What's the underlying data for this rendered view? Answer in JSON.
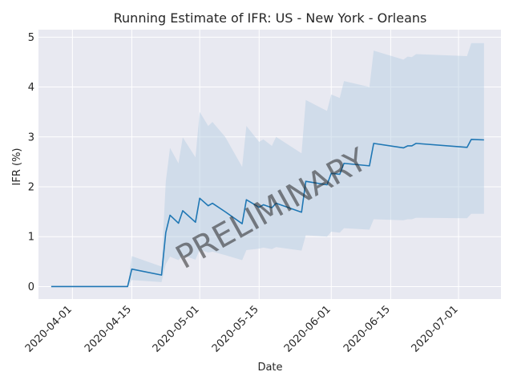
{
  "chart_data": {
    "type": "area",
    "title": "Running Estimate of IFR: US - New York - Orleans",
    "xlabel": "Date",
    "ylabel": "IFR (%)",
    "watermark": "PRELIMINARY",
    "x_ticks": [
      "2020-04-01",
      "2020-04-15",
      "2020-05-01",
      "2020-05-15",
      "2020-06-01",
      "2020-06-15",
      "2020-07-01"
    ],
    "y_ticks": [
      "0",
      "1",
      "2",
      "3",
      "4",
      "5"
    ],
    "xlim": [
      "2020-03-24",
      "2020-07-11"
    ],
    "ylim": [
      -0.25,
      5.15
    ],
    "grid": true,
    "colors": {
      "background": "#e8e9f1",
      "grid": "#ffffff",
      "line": "#1f77b4",
      "band": "#b3cde3",
      "watermark": "#9a9aa2"
    },
    "series": [
      {
        "points": [
          [
            "2020-03-27",
            0
          ],
          [
            "2020-04-14",
            0
          ],
          [
            "2020-04-15",
            0.35
          ],
          [
            "2020-04-22",
            0.23
          ],
          [
            "2020-04-23",
            1.08
          ],
          [
            "2020-04-24",
            1.43
          ],
          [
            "2020-04-26",
            1.27
          ],
          [
            "2020-04-27",
            1.52
          ],
          [
            "2020-04-30",
            1.29
          ],
          [
            "2020-05-01",
            1.77
          ],
          [
            "2020-05-03",
            1.62
          ],
          [
            "2020-05-04",
            1.67
          ],
          [
            "2020-05-07",
            1.5
          ],
          [
            "2020-05-11",
            1.26
          ],
          [
            "2020-05-12",
            1.74
          ],
          [
            "2020-05-15",
            1.59
          ],
          [
            "2020-05-16",
            1.64
          ],
          [
            "2020-05-18",
            1.58
          ],
          [
            "2020-05-19",
            1.67
          ],
          [
            "2020-05-25",
            1.49
          ],
          [
            "2020-05-26",
            2.11
          ],
          [
            "2020-05-31",
            2.04
          ],
          [
            "2020-06-01",
            2.27
          ],
          [
            "2020-06-03",
            2.25
          ],
          [
            "2020-06-04",
            2.47
          ],
          [
            "2020-06-10",
            2.42
          ],
          [
            "2020-06-11",
            2.87
          ],
          [
            "2020-06-18",
            2.78
          ],
          [
            "2020-06-19",
            2.82
          ],
          [
            "2020-06-20",
            2.82
          ],
          [
            "2020-06-21",
            2.87
          ],
          [
            "2020-07-03",
            2.79
          ],
          [
            "2020-07-04",
            2.95
          ],
          [
            "2020-07-07",
            2.94
          ]
        ],
        "ci_band": [
          [
            "2020-03-27",
            0,
            0
          ],
          [
            "2020-04-14",
            0,
            0
          ],
          [
            "2020-04-15",
            0.13,
            0.61
          ],
          [
            "2020-04-22",
            0.09,
            0.4
          ],
          [
            "2020-04-23",
            0.45,
            2.1
          ],
          [
            "2020-04-24",
            0.6,
            2.78
          ],
          [
            "2020-04-26",
            0.53,
            2.47
          ],
          [
            "2020-04-27",
            0.63,
            2.99
          ],
          [
            "2020-04-30",
            0.54,
            2.59
          ],
          [
            "2020-05-01",
            0.74,
            3.5
          ],
          [
            "2020-05-03",
            0.68,
            3.22
          ],
          [
            "2020-05-04",
            0.7,
            3.3
          ],
          [
            "2020-05-07",
            0.63,
            3.0
          ],
          [
            "2020-05-11",
            0.53,
            2.4
          ],
          [
            "2020-05-12",
            0.73,
            3.22
          ],
          [
            "2020-05-15",
            0.76,
            2.9
          ],
          [
            "2020-05-16",
            0.78,
            2.95
          ],
          [
            "2020-05-18",
            0.75,
            2.82
          ],
          [
            "2020-05-19",
            0.79,
            3.0
          ],
          [
            "2020-05-25",
            0.72,
            2.67
          ],
          [
            "2020-05-26",
            1.03,
            3.74
          ],
          [
            "2020-05-31",
            1.0,
            3.52
          ],
          [
            "2020-06-01",
            1.1,
            3.85
          ],
          [
            "2020-06-03",
            1.08,
            3.78
          ],
          [
            "2020-06-04",
            1.17,
            4.12
          ],
          [
            "2020-06-10",
            1.14,
            4.0
          ],
          [
            "2020-06-11",
            1.35,
            4.73
          ],
          [
            "2020-06-18",
            1.33,
            4.55
          ],
          [
            "2020-06-19",
            1.35,
            4.61
          ],
          [
            "2020-06-20",
            1.35,
            4.6
          ],
          [
            "2020-06-21",
            1.38,
            4.66
          ],
          [
            "2020-07-03",
            1.37,
            4.62
          ],
          [
            "2020-07-04",
            1.46,
            4.88
          ],
          [
            "2020-07-07",
            1.46,
            4.88
          ]
        ]
      }
    ]
  }
}
